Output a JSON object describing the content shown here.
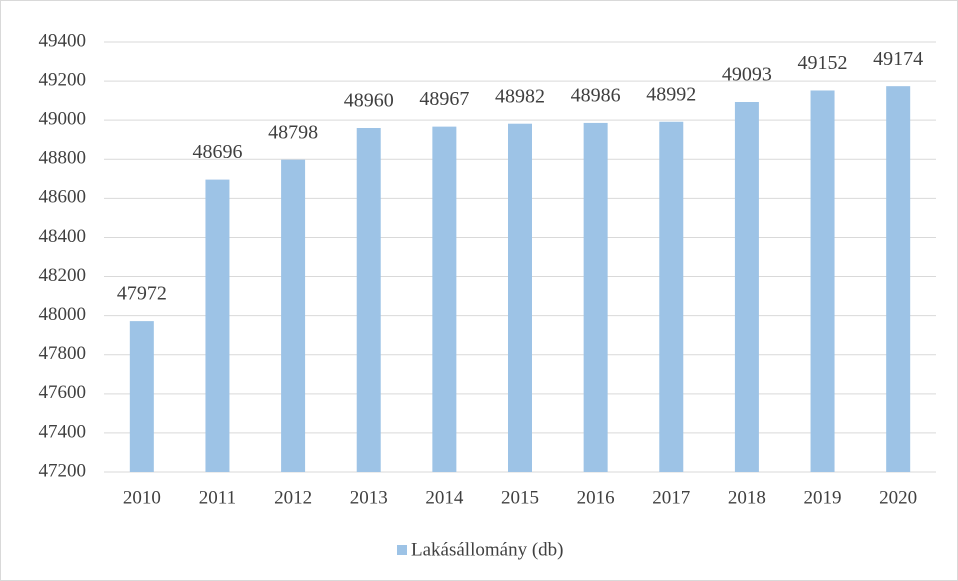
{
  "chart_data": {
    "type": "bar",
    "categories": [
      "2010",
      "2011",
      "2012",
      "2013",
      "2014",
      "2015",
      "2016",
      "2017",
      "2018",
      "2019",
      "2020"
    ],
    "series": [
      {
        "name": "Lakásállomány (db)",
        "color": "#9dc3e6",
        "values": [
          47972,
          48696,
          48798,
          48960,
          48967,
          48982,
          48986,
          48992,
          49093,
          49152,
          49174
        ]
      }
    ],
    "ylim": [
      47200,
      49400
    ],
    "yticks": [
      47200,
      47400,
      47600,
      47800,
      48000,
      48200,
      48400,
      48600,
      48800,
      49000,
      49200,
      49400
    ],
    "grid": true,
    "legend": "bottom",
    "data_labels": true
  }
}
